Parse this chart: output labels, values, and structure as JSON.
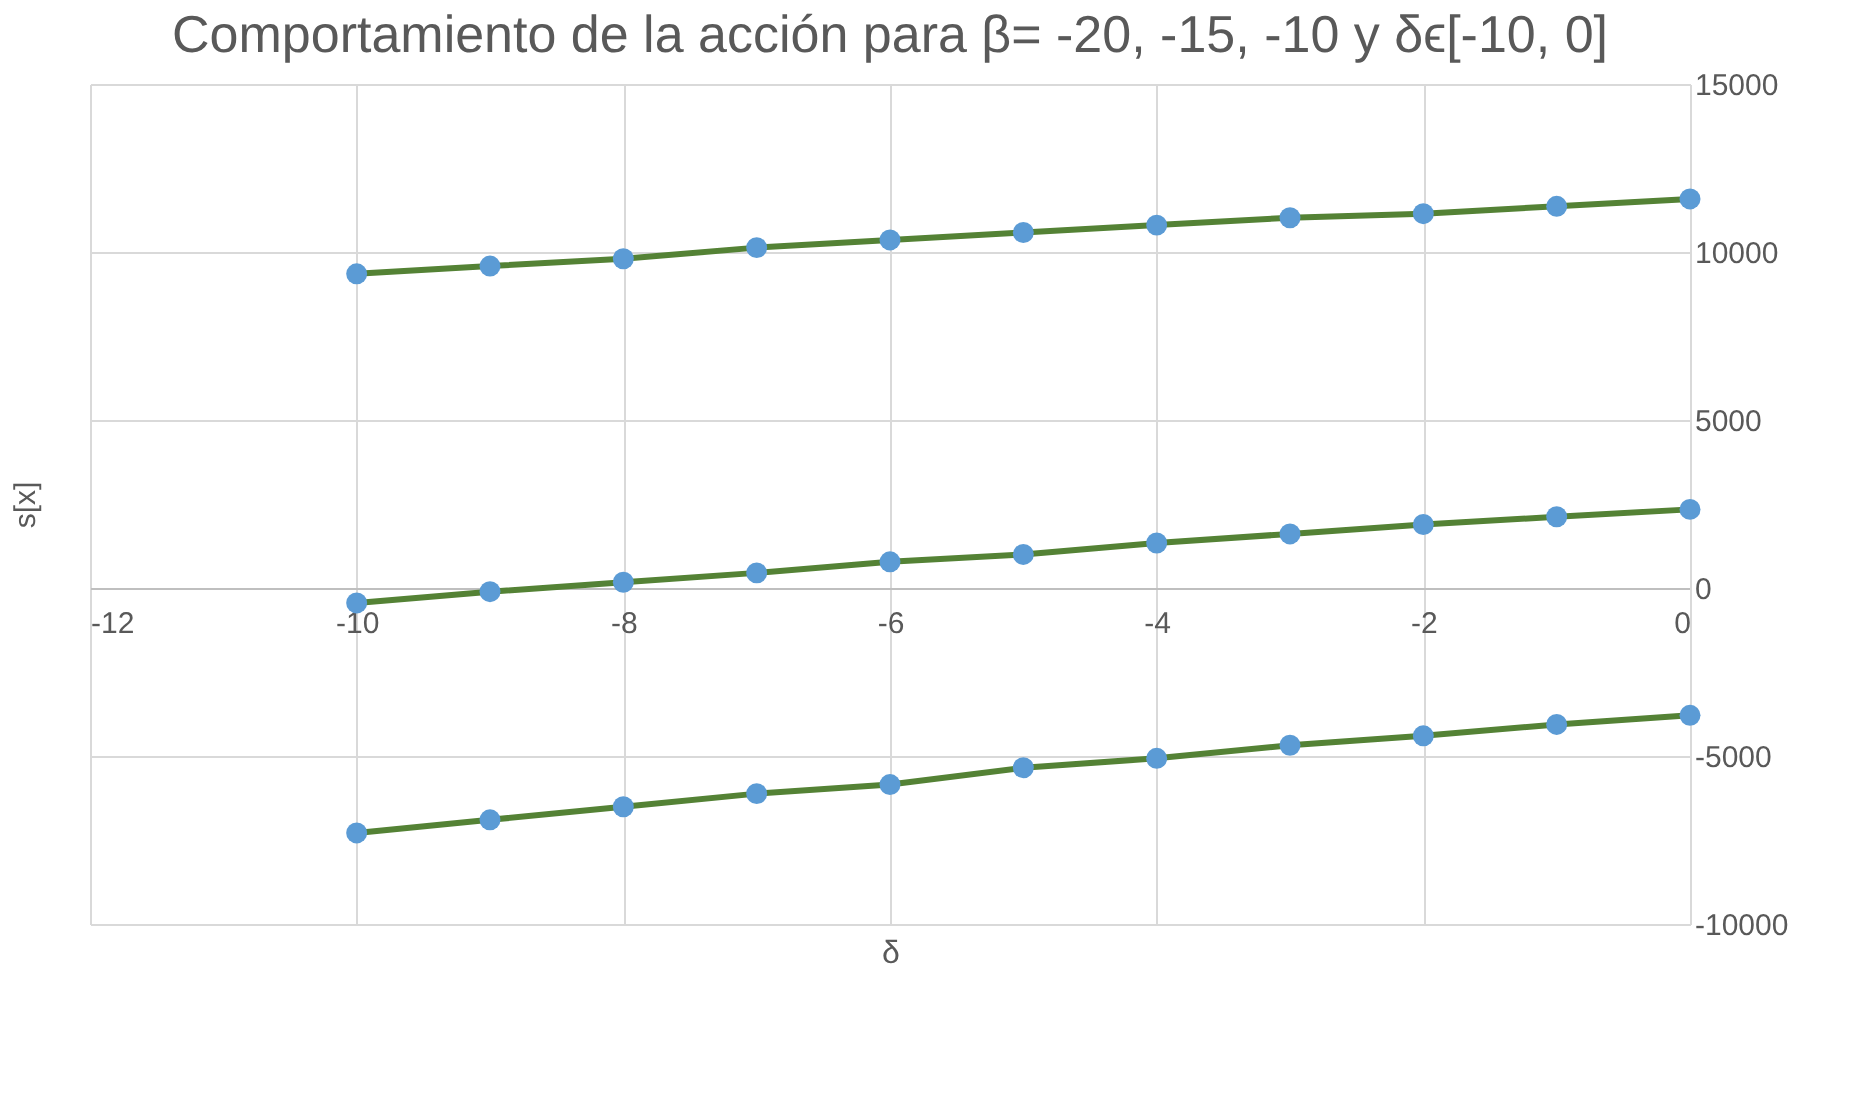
{
  "chart_data": {
    "type": "line",
    "title": "Comportamiento de la acción para β= -20, -15, -10 y δϵ[-10, 0]",
    "xlabel": "δ",
    "ylabel": "s[x]",
    "x": [
      -10,
      -9,
      -8,
      -7,
      -6,
      -5,
      -4,
      -3,
      -2,
      -1,
      0
    ],
    "series": [
      {
        "color": "#548235",
        "values": [
          9350,
          9580,
          9800,
          10130,
          10360,
          10580,
          10800,
          11020,
          11140,
          11360,
          11580
        ]
      },
      {
        "color": "#548235",
        "values": [
          -445,
          -110,
          170,
          450,
          780,
          1000,
          1340,
          1610,
          1890,
          2120,
          2340
        ]
      },
      {
        "color": "#548235",
        "values": [
          -7290,
          -6900,
          -6510,
          -6120,
          -5850,
          -5350,
          -5070,
          -4680,
          -4400,
          -4060,
          -3790
        ]
      }
    ],
    "xlim": [
      -12,
      0
    ],
    "xticks": [
      -12,
      -10,
      -8,
      -6,
      -4,
      -2,
      0
    ],
    "ylim": [
      -10000,
      15000
    ],
    "yticks": [
      -10000,
      -5000,
      0,
      5000,
      10000,
      15000
    ],
    "grid": true,
    "marker": "circle",
    "line_style": "solid"
  }
}
